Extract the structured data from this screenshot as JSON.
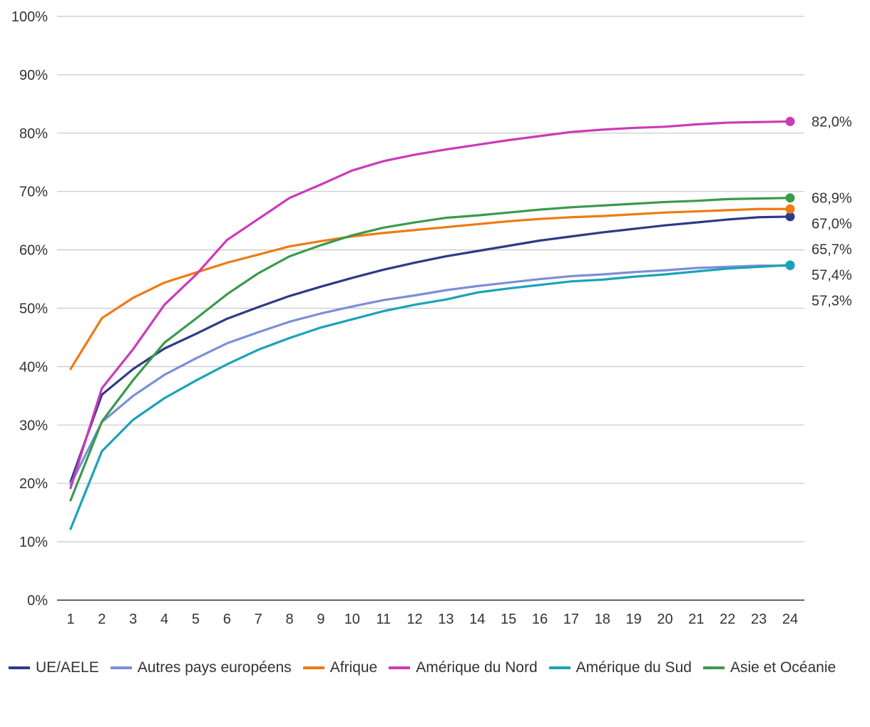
{
  "chart_data": {
    "type": "line",
    "title": "",
    "xlabel": "",
    "ylabel": "",
    "x": [
      1,
      2,
      3,
      4,
      5,
      6,
      7,
      8,
      9,
      10,
      11,
      12,
      13,
      14,
      15,
      16,
      17,
      18,
      19,
      20,
      21,
      22,
      23,
      24
    ],
    "ylim": [
      0,
      100
    ],
    "y_ticks": [
      "0%",
      "10%",
      "20%",
      "30%",
      "40%",
      "50%",
      "60%",
      "70%",
      "80%",
      "90%",
      "100%"
    ],
    "y_tick_values": [
      0,
      10,
      20,
      30,
      40,
      50,
      60,
      70,
      80,
      90,
      100
    ],
    "grid": "horizontal",
    "legend_position": "bottom",
    "series": [
      {
        "name": "UE/AELE",
        "color": "#2e3a87",
        "values": [
          20.3,
          35.2,
          39.6,
          43.1,
          45.6,
          48.2,
          50.2,
          52.1,
          53.7,
          55.2,
          56.6,
          57.8,
          58.9,
          59.8,
          60.7,
          61.6,
          62.3,
          63.0,
          63.6,
          64.2,
          64.7,
          65.2,
          65.6,
          65.7
        ],
        "end_label": "65,7%"
      },
      {
        "name": "Autres pays européens",
        "color": "#7b8fd8",
        "values": [
          19.8,
          30.5,
          35.0,
          38.6,
          41.4,
          44.0,
          45.9,
          47.7,
          49.1,
          50.3,
          51.4,
          52.2,
          53.1,
          53.8,
          54.4,
          55.0,
          55.5,
          55.8,
          56.2,
          56.5,
          56.9,
          57.1,
          57.3,
          57.3
        ],
        "end_label": "57,3%"
      },
      {
        "name": "Afrique",
        "color": "#f07a10",
        "values": [
          39.6,
          48.3,
          51.8,
          54.4,
          56.1,
          57.8,
          59.2,
          60.6,
          61.5,
          62.3,
          62.9,
          63.4,
          63.9,
          64.4,
          64.9,
          65.3,
          65.6,
          65.8,
          66.1,
          66.4,
          66.6,
          66.8,
          67.0,
          67.0
        ],
        "end_label": "67,0%"
      },
      {
        "name": "Amérique du Nord",
        "color": "#cc3ab8",
        "values": [
          19.2,
          36.3,
          43.0,
          50.6,
          55.7,
          61.7,
          65.3,
          68.9,
          71.2,
          73.6,
          75.2,
          76.3,
          77.2,
          78.0,
          78.8,
          79.5,
          80.2,
          80.6,
          80.9,
          81.1,
          81.5,
          81.8,
          81.9,
          82.0
        ],
        "end_label": "82,0%"
      },
      {
        "name": "Amérique du Sud",
        "color": "#1aa3b8",
        "values": [
          12.2,
          25.5,
          30.9,
          34.6,
          37.6,
          40.4,
          42.9,
          44.9,
          46.7,
          48.1,
          49.5,
          50.6,
          51.5,
          52.7,
          53.4,
          54.0,
          54.6,
          54.9,
          55.4,
          55.8,
          56.3,
          56.8,
          57.1,
          57.4
        ],
        "end_label": "57,4%"
      },
      {
        "name": "Asie et Océanie",
        "color": "#3a9a4c",
        "values": [
          17.1,
          30.6,
          37.7,
          44.1,
          48.2,
          52.4,
          56.0,
          58.9,
          60.8,
          62.5,
          63.8,
          64.7,
          65.5,
          65.9,
          66.4,
          66.9,
          67.3,
          67.6,
          67.9,
          68.2,
          68.4,
          68.7,
          68.8,
          68.9
        ],
        "end_label": "68,9%"
      }
    ],
    "end_labels_order": [
      "82,0%",
      "68,9%",
      "67,0%",
      "65,7%",
      "57,4%",
      "57,3%"
    ]
  }
}
